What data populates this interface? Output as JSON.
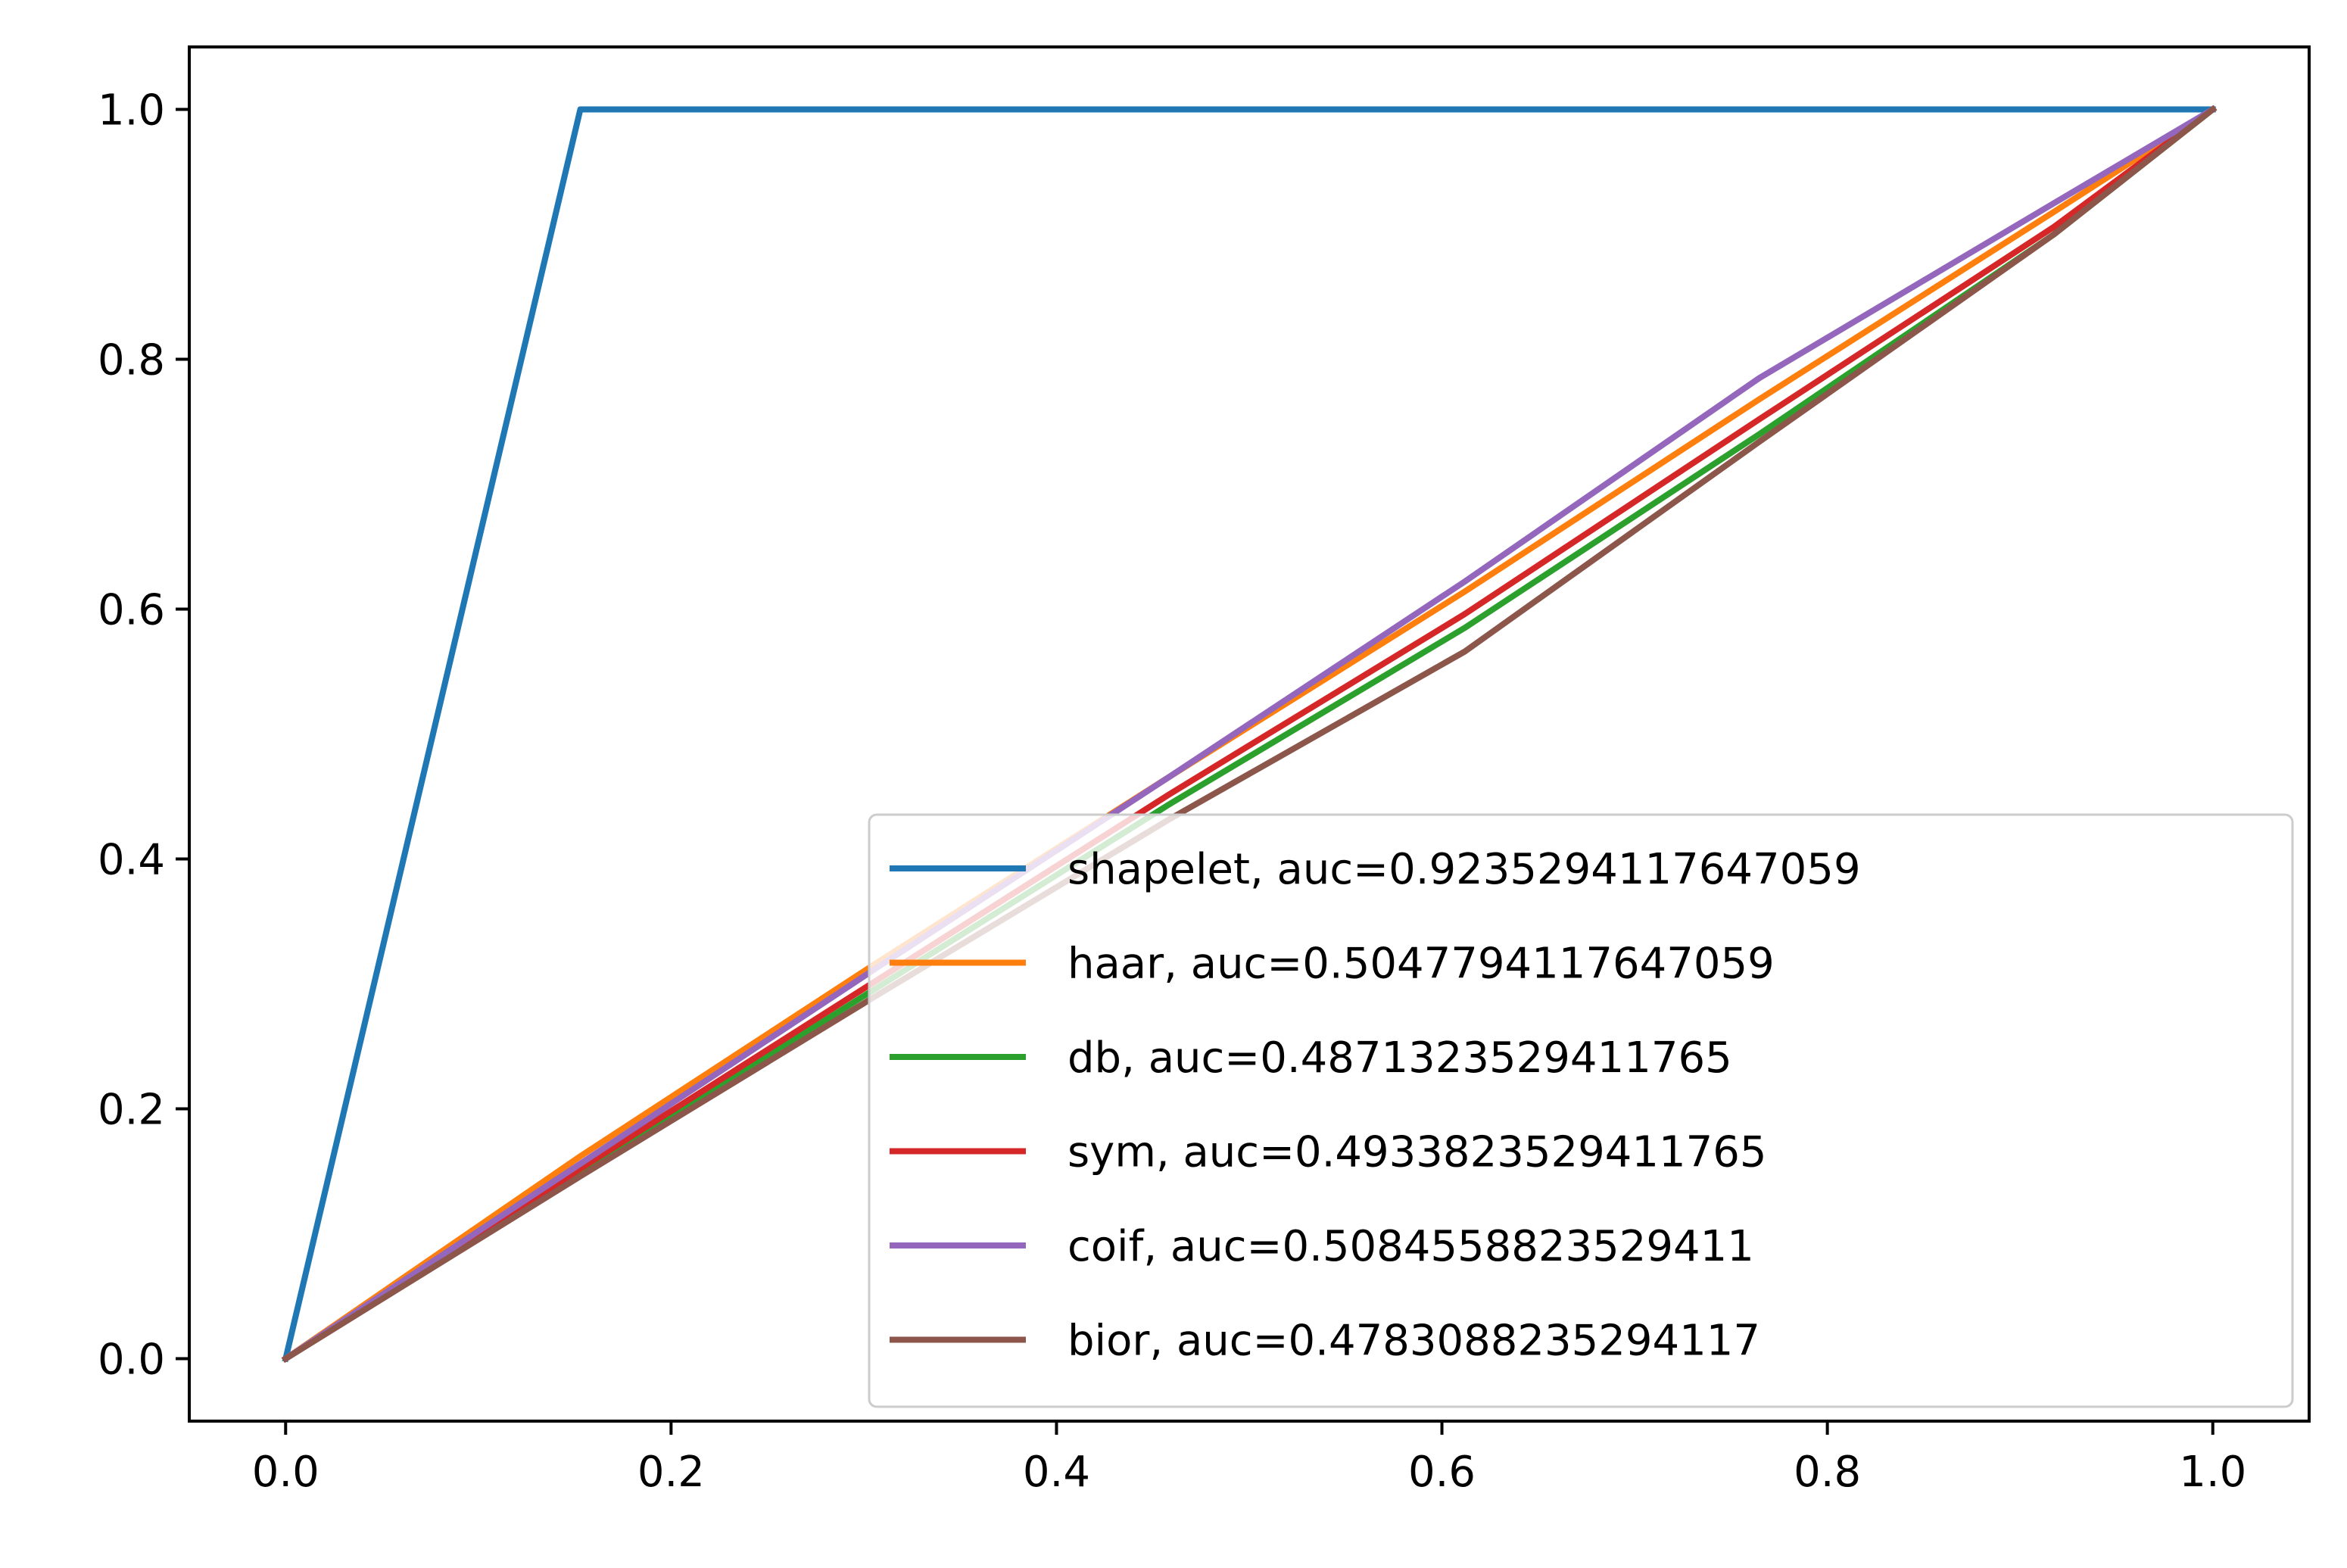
{
  "chart_data": {
    "type": "line",
    "title": "",
    "xlabel": "",
    "ylabel": "",
    "xlim": [
      -0.05,
      1.05
    ],
    "ylim": [
      -0.05,
      1.05
    ],
    "xticks": [
      "0.0",
      "0.2",
      "0.4",
      "0.6",
      "0.8",
      "1.0"
    ],
    "yticks": [
      "0.0",
      "0.2",
      "0.4",
      "0.6",
      "0.8",
      "1.0"
    ],
    "grid": false,
    "legend_position": "lower-right",
    "series": [
      {
        "name": "shapelet, auc=0.9235294117647059",
        "color": "#1f77b4",
        "x": [
          0.0,
          0.1529,
          1.0
        ],
        "y": [
          0.0,
          1.0,
          1.0
        ]
      },
      {
        "name": "haar, auc=0.5047794117647059",
        "color": "#ff7f0e",
        "x": [
          0.0,
          0.1529,
          0.3059,
          0.4588,
          0.6118,
          0.7647,
          0.9176,
          1.0
        ],
        "y": [
          0.0,
          0.162,
          0.316,
          0.466,
          0.614,
          0.768,
          0.918,
          1.0
        ]
      },
      {
        "name": "db, auc=0.4871323529411765",
        "color": "#2ca02c",
        "x": [
          0.0,
          0.1529,
          0.3059,
          0.4588,
          0.6118,
          0.7647,
          0.9176,
          1.0
        ],
        "y": [
          0.0,
          0.148,
          0.296,
          0.444,
          0.585,
          0.74,
          0.9,
          1.0
        ]
      },
      {
        "name": "sym, auc=0.4933823529411765",
        "color": "#d62728",
        "x": [
          0.0,
          0.1529,
          0.3059,
          0.4588,
          0.6118,
          0.7647,
          0.9176,
          1.0
        ],
        "y": [
          0.0,
          0.152,
          0.302,
          0.452,
          0.596,
          0.752,
          0.906,
          1.0
        ]
      },
      {
        "name": "coif, auc=0.5084558823529411",
        "color": "#9467bd",
        "x": [
          0.0,
          0.1529,
          0.3059,
          0.4588,
          0.6118,
          0.7647,
          0.9176,
          1.0
        ],
        "y": [
          0.0,
          0.156,
          0.312,
          0.466,
          0.622,
          0.785,
          0.925,
          1.0
        ]
      },
      {
        "name": "bior, auc=0.4783088235294117",
        "color": "#8c564b",
        "x": [
          0.0,
          0.1529,
          0.3059,
          0.4588,
          0.6118,
          0.7647,
          0.9176,
          1.0
        ],
        "y": [
          0.0,
          0.146,
          0.29,
          0.432,
          0.566,
          0.734,
          0.9,
          1.0
        ]
      }
    ]
  }
}
